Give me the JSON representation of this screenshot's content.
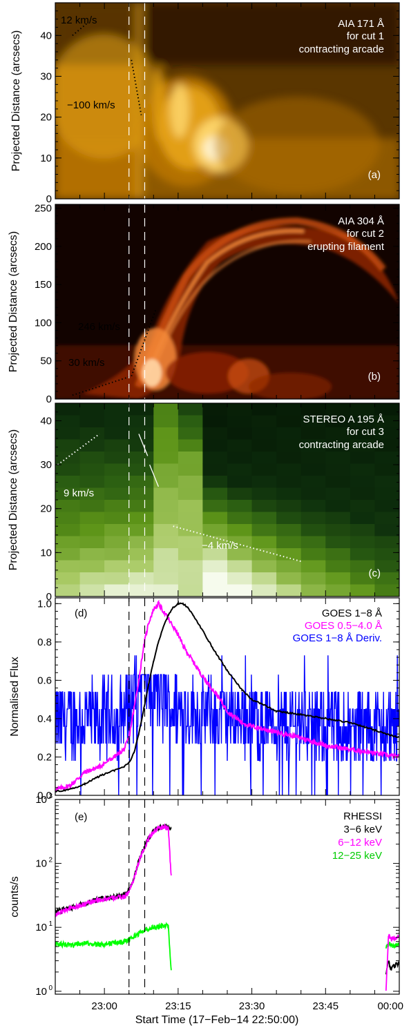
{
  "colors": {
    "aia171": [
      "#120a00",
      "#5a3600",
      "#b87400",
      "#e8a516",
      "#ffd870",
      "#fff6d8"
    ],
    "aia304": [
      "#120300",
      "#4a0c00",
      "#8e2300",
      "#d0500a",
      "#f48a3a",
      "#ffd6a6"
    ],
    "stereo195": [
      "#031203",
      "#0d2e0c",
      "#2b5e12",
      "#5d9418",
      "#a6c860",
      "#f6fbee"
    ],
    "goes_long": "#000000",
    "goes_short": "#ff00ff",
    "goes_deriv": "#0000ff",
    "rhessi_3_6": "#000000",
    "rhessi_6_12": "#ff00ff",
    "rhessi_12_25": "#00ff00"
  },
  "x_axis": {
    "label": "Start Time (17−Feb−14 22:50:00)",
    "tick_labels": [
      "23:00",
      "23:15",
      "23:30",
      "23:45",
      "00:00"
    ]
  },
  "chart_data": [
    {
      "type": "heatmap",
      "panel": "(a)",
      "title": [
        "AIA 171 Å",
        "for cut 1",
        "contracting arcade"
      ],
      "ylabel": "Projected Distance (arcsecs)",
      "ylim": [
        0,
        48
      ],
      "yticks": [
        "0",
        "10",
        "20",
        "30",
        "40"
      ],
      "xlim_minutes": [
        0,
        70
      ],
      "vlines_minutes": [
        15,
        18.2
      ],
      "speed_fits": [
        {
          "label": "12 km/s",
          "x": [
            3.5,
            6.5
          ],
          "y": [
            40,
            43
          ]
        },
        {
          "label": "−100 km/s",
          "x": [
            15.5,
            17.5
          ],
          "y": [
            34,
            20.5
          ]
        }
      ]
    },
    {
      "type": "heatmap",
      "panel": "(b)",
      "title": [
        "AIA 304 Å",
        "for cut 2",
        "erupting filament"
      ],
      "ylabel": "Projected Distance (arcsecs)",
      "ylim": [
        0,
        255
      ],
      "yticks": [
        "0",
        "50",
        "100",
        "150",
        "200",
        "250"
      ],
      "xlim_minutes": [
        0,
        70
      ],
      "vlines_minutes": [
        15,
        18.2
      ],
      "speed_fits": [
        {
          "label": "30 km/s",
          "x": [
            3.5,
            15.5
          ],
          "y": [
            5,
            30
          ]
        },
        {
          "label": "246 km/s",
          "x": [
            15.5,
            20.5
          ],
          "y": [
            30,
            118
          ]
        }
      ]
    },
    {
      "type": "heatmap",
      "panel": "(c)",
      "title": [
        "STEREO A 195 Å",
        "for cut 3",
        "contracting arcade"
      ],
      "ylabel": "Projected Distance (arcsecs)",
      "ylim": [
        0,
        44
      ],
      "yticks": [
        "0",
        "10",
        "20",
        "30",
        "40"
      ],
      "xlim_minutes": [
        0,
        70
      ],
      "vlines_minutes": [
        15,
        18.2
      ],
      "speed_fits": [
        {
          "label": "9 km/s",
          "x": [
            0.5,
            9
          ],
          "y": [
            30,
            37
          ]
        },
        {
          "label": "",
          "x": [
            17,
            18.8
          ],
          "y": [
            37,
            32
          ]
        },
        {
          "label": "",
          "x": [
            19.2,
            21
          ],
          "y": [
            30,
            25
          ]
        },
        {
          "label": "−4 km/s",
          "x": [
            24,
            50
          ],
          "y": [
            16,
            8
          ]
        }
      ]
    },
    {
      "type": "line",
      "panel": "(d)",
      "ylabel": "Normalised Flux",
      "ylim": [
        0,
        1.03
      ],
      "yticks": [
        "0.0",
        "0.2",
        "0.4",
        "0.6",
        "0.8",
        "1.0"
      ],
      "xlim_minutes": [
        0,
        70
      ],
      "vlines_minutes": [
        15,
        18.2
      ],
      "series": [
        {
          "name": "GOES 1−8 Å",
          "x": [
            0,
            3,
            6,
            9,
            12,
            14,
            15,
            16,
            17,
            18,
            19,
            20,
            21,
            22,
            23,
            24,
            25,
            26,
            27,
            28,
            30,
            32,
            35,
            38,
            40,
            45,
            50,
            55,
            60,
            65,
            70
          ],
          "values": [
            0.02,
            0.03,
            0.06,
            0.1,
            0.13,
            0.15,
            0.17,
            0.22,
            0.32,
            0.45,
            0.58,
            0.7,
            0.8,
            0.88,
            0.94,
            0.98,
            1.0,
            1.0,
            0.98,
            0.94,
            0.86,
            0.77,
            0.65,
            0.55,
            0.5,
            0.44,
            0.42,
            0.4,
            0.38,
            0.34,
            0.3
          ]
        },
        {
          "name": "GOES 0.5−4.0 Å",
          "x": [
            0,
            3,
            6,
            9,
            12,
            14,
            15,
            16,
            17,
            18,
            19,
            20,
            21,
            22,
            23,
            24,
            25,
            26,
            28,
            30,
            33,
            35,
            38,
            40,
            45,
            50,
            55,
            60,
            65,
            70
          ],
          "values": [
            0.03,
            0.05,
            0.12,
            0.15,
            0.2,
            0.24,
            0.3,
            0.45,
            0.6,
            0.78,
            0.9,
            0.97,
            1.0,
            0.96,
            0.92,
            0.88,
            0.84,
            0.78,
            0.7,
            0.62,
            0.52,
            0.44,
            0.38,
            0.36,
            0.33,
            0.3,
            0.26,
            0.24,
            0.22,
            0.2
          ]
        },
        {
          "name": "GOES 1−8 Å Deriv.",
          "x": [
            0,
            10,
            14,
            16,
            18,
            20,
            22,
            25,
            30,
            40,
            50,
            60,
            70
          ],
          "values": [
            0.38,
            0.4,
            0.42,
            0.52,
            0.66,
            0.58,
            0.5,
            0.46,
            0.42,
            0.4,
            0.38,
            0.36,
            0.35
          ]
        }
      ]
    },
    {
      "type": "line",
      "panel": "(e)",
      "title": "RHESSI",
      "ylabel": "counts/s",
      "yscale": "log",
      "ylim": [
        0.9,
        1000
      ],
      "yticks": [
        "10⁰",
        "10¹",
        "10²",
        "10³"
      ],
      "xlim_minutes": [
        0,
        70
      ],
      "vlines_minutes": [
        15,
        18.2
      ],
      "series": [
        {
          "name": "3−6 keV",
          "x": [
            0,
            3,
            6,
            9,
            12,
            14,
            15,
            16,
            17,
            18,
            19,
            20,
            21,
            22,
            23,
            23.6,
            23.7,
            67.3,
            67.8,
            68.2,
            70
          ],
          "values": [
            18,
            20,
            24,
            28,
            30,
            32,
            38,
            60,
            110,
            170,
            250,
            320,
            360,
            380,
            370,
            360,
            null,
            2.0,
            3.0,
            2.2,
            2.8
          ]
        },
        {
          "name": "6−12 keV",
          "x": [
            0,
            3,
            6,
            9,
            12,
            14,
            15,
            16,
            17,
            18,
            19,
            20,
            21,
            22,
            23,
            23.6,
            23.7,
            67.3,
            67.8,
            68.5,
            70
          ],
          "values": [
            16,
            20,
            23,
            27,
            29,
            30,
            36,
            58,
            105,
            165,
            245,
            315,
            355,
            370,
            360,
            60,
            null,
            1.0,
            7.5,
            6.5,
            7.0
          ]
        },
        {
          "name": "12−25 keV",
          "x": [
            0,
            3,
            6,
            9,
            12,
            14,
            15,
            16,
            17,
            18,
            19,
            20,
            21,
            22,
            23,
            23.6,
            23.7,
            67.3,
            67.8,
            68.5,
            70
          ],
          "values": [
            5.5,
            5.3,
            5.6,
            5.4,
            5.7,
            6,
            6.5,
            7.2,
            8,
            9,
            9.6,
            10,
            10.2,
            10.5,
            10.5,
            2.0,
            null,
            5.0,
            5.6,
            5.2,
            5.4
          ]
        }
      ]
    }
  ]
}
